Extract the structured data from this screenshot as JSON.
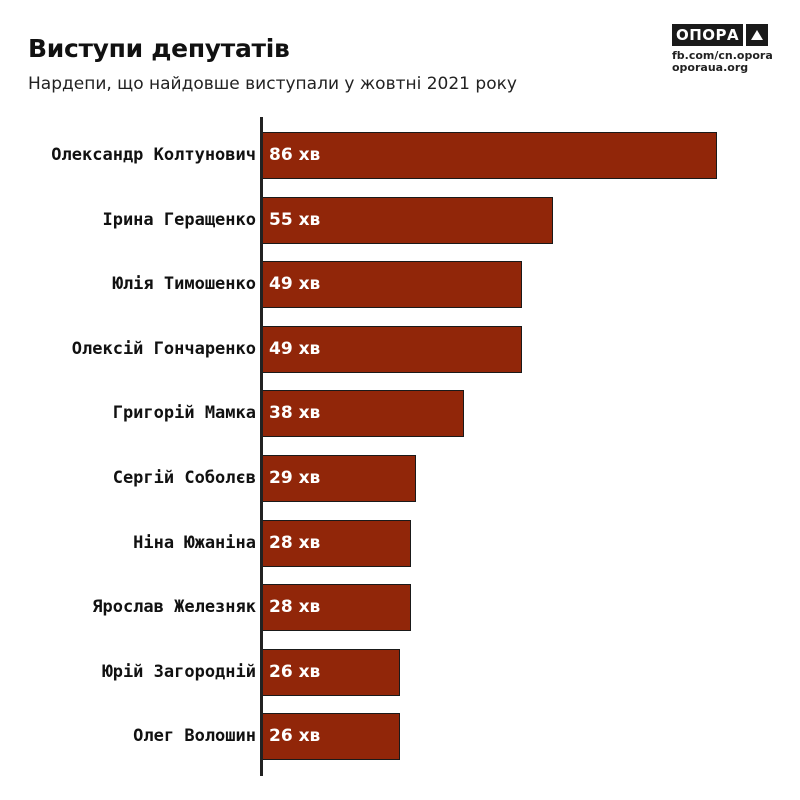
{
  "header": {
    "title": "Виступи депутатів",
    "subtitle": "Нардепи, що найдовше виступали у жовтні 2021 року"
  },
  "logo": {
    "word": "ОПОРА",
    "icon": "triangle-icon",
    "line1": "fb.com/cn.opora",
    "line2": "oporaua.org"
  },
  "colors": {
    "bar": "#912609",
    "bar_border": "#1a1a1a",
    "axis": "#222222"
  },
  "chart_data": {
    "type": "bar",
    "orientation": "horizontal",
    "title": "Виступи депутатів",
    "subtitle": "Нардепи, що найдовше виступали у жовтні 2021 року",
    "xlabel": "",
    "ylabel": "",
    "unit": "хв",
    "grid": false,
    "legend": null,
    "categories": [
      "Олександр Колтунович",
      "Ірина Геращенко",
      "Юлія Тимошенко",
      "Олексій Гончаренко",
      "Григорій Мамка",
      "Сергій Соболєв",
      "Ніна Южаніна",
      "Ярослав Железняк",
      "Юрій Загородній",
      "Олег Волошин"
    ],
    "values": [
      86,
      55,
      49,
      49,
      38,
      29,
      28,
      28,
      26,
      26
    ],
    "value_labels": [
      "86 хв",
      "55 хв",
      "49 хв",
      "49 хв",
      "38 хв",
      "29 хв",
      "28 хв",
      "28 хв",
      "26 хв",
      "26 хв"
    ],
    "xlim": [
      0,
      86
    ]
  }
}
